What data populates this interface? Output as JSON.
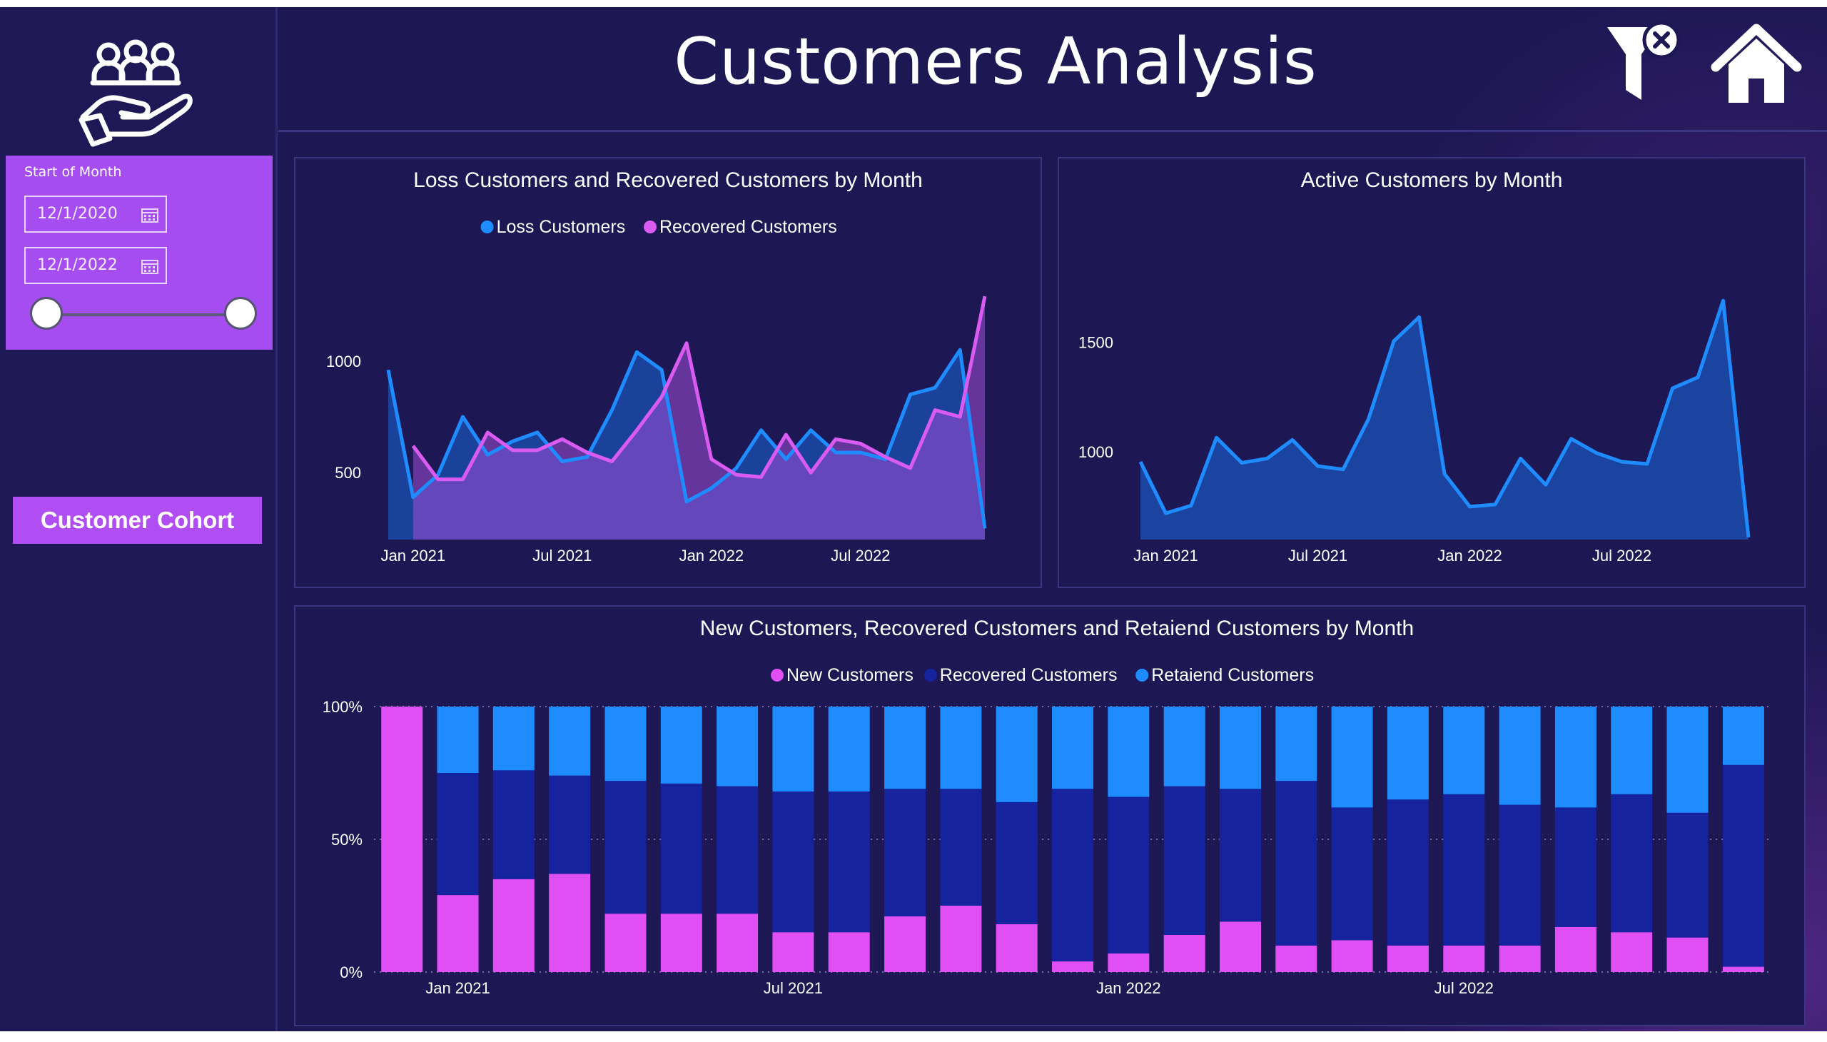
{
  "header": {
    "title": "Customers Analysis"
  },
  "sidebar": {
    "slicer": {
      "title": "Start of Month",
      "start_date": "12/1/2020",
      "end_date": "12/1/2022",
      "range": [
        0,
        1
      ]
    },
    "cohort_button_label": "Customer Cohort"
  },
  "colors": {
    "background": "#1d1754",
    "loss": "#1e8bff",
    "recovered_pink": "#d95bf2",
    "new_pink": "#df4ff4",
    "recovered_navy": "#15239e",
    "retained": "#1e8bff",
    "slicer": "#a64df2"
  },
  "chart_data": [
    {
      "type": "area",
      "title": "Loss Customers and Recovered Customers by Month",
      "x_ticks": [
        "Jan 2021",
        "Jul 2021",
        "Jan 2022",
        "Jul 2022"
      ],
      "x_tick_index": [
        1,
        7,
        13,
        19
      ],
      "y_ticks": [
        500,
        1000
      ],
      "ylim": [
        200,
        1300
      ],
      "legend": "top",
      "x": [
        "Dec 2020",
        "Jan 2021",
        "Feb 2021",
        "Mar 2021",
        "Apr 2021",
        "May 2021",
        "Jun 2021",
        "Jul 2021",
        "Aug 2021",
        "Sep 2021",
        "Oct 2021",
        "Nov 2021",
        "Dec 2021",
        "Jan 2022",
        "Feb 2022",
        "Mar 2022",
        "Apr 2022",
        "May 2022",
        "Jun 2022",
        "Jul 2022",
        "Aug 2022",
        "Sep 2022",
        "Oct 2022",
        "Nov 2022",
        "Dec 2022"
      ],
      "series": [
        {
          "name": "Loss Customers",
          "values": [
            960,
            390,
            490,
            750,
            580,
            640,
            680,
            550,
            570,
            780,
            1040,
            960,
            370,
            430,
            520,
            690,
            560,
            690,
            590,
            590,
            560,
            850,
            880,
            1050,
            250
          ]
        },
        {
          "name": "Recovered Customers",
          "values": [
            null,
            620,
            470,
            470,
            680,
            600,
            600,
            650,
            590,
            550,
            690,
            840,
            1080,
            560,
            490,
            480,
            670,
            500,
            650,
            630,
            570,
            520,
            780,
            750,
            1290
          ]
        }
      ]
    },
    {
      "type": "area",
      "title": "Active Customers by Month",
      "x_ticks": [
        "Jan 2021",
        "Jul 2021",
        "Jan 2022",
        "Jul 2022"
      ],
      "x_tick_index": [
        1,
        7,
        13,
        19
      ],
      "y_ticks": [
        1000,
        1500
      ],
      "ylim": [
        600,
        1720
      ],
      "x": [
        "Dec 2020",
        "Jan 2021",
        "Feb 2021",
        "Mar 2021",
        "Apr 2021",
        "May 2021",
        "Jun 2021",
        "Jul 2021",
        "Aug 2021",
        "Sep 2021",
        "Oct 2021",
        "Nov 2021",
        "Dec 2021",
        "Jan 2022",
        "Feb 2022",
        "Mar 2022",
        "Apr 2022",
        "May 2022",
        "Jun 2022",
        "Jul 2022",
        "Aug 2022",
        "Sep 2022",
        "Oct 2022",
        "Nov 2022",
        "Dec 2022"
      ],
      "series": [
        {
          "name": "Active Customers",
          "values": [
            955,
            720,
            755,
            1065,
            950,
            970,
            1055,
            935,
            920,
            1150,
            1505,
            1615,
            900,
            750,
            760,
            970,
            850,
            1060,
            995,
            955,
            945,
            1290,
            1340,
            1690,
            610
          ]
        }
      ]
    },
    {
      "type": "bar",
      "stacked": "percent",
      "title": "New Customers, Recovered Customers and Retaiend Customers by Month",
      "x_ticks": [
        "Jan 2021",
        "Jul 2021",
        "Jan 2022",
        "Jul 2022"
      ],
      "x_tick_index": [
        1,
        7,
        13,
        19
      ],
      "y_ticks": [
        "0%",
        "50%",
        "100%"
      ],
      "ylim": [
        0,
        100
      ],
      "legend": "top",
      "x": [
        "Dec 2020",
        "Jan 2021",
        "Feb 2021",
        "Mar 2021",
        "Apr 2021",
        "May 2021",
        "Jun 2021",
        "Jul 2021",
        "Aug 2021",
        "Sep 2021",
        "Oct 2021",
        "Nov 2021",
        "Dec 2021",
        "Jan 2022",
        "Feb 2022",
        "Mar 2022",
        "Apr 2022",
        "May 2022",
        "Jun 2022",
        "Jul 2022",
        "Aug 2022",
        "Sep 2022",
        "Oct 2022",
        "Nov 2022",
        "Dec 2022"
      ],
      "series": [
        {
          "name": "New Customers",
          "values": [
            100,
            29,
            35,
            37,
            22,
            22,
            22,
            15,
            15,
            21,
            25,
            18,
            4,
            7,
            14,
            19,
            10,
            12,
            10,
            10,
            10,
            17,
            15,
            13,
            2
          ]
        },
        {
          "name": "Recovered Customers",
          "values": [
            0,
            46,
            41,
            37,
            50,
            49,
            48,
            53,
            53,
            48,
            44,
            46,
            65,
            59,
            56,
            50,
            62,
            50,
            55,
            57,
            53,
            45,
            52,
            47,
            76
          ]
        },
        {
          "name": "Retaiend Customers",
          "values": [
            0,
            25,
            24,
            26,
            28,
            29,
            30,
            32,
            32,
            31,
            31,
            36,
            31,
            34,
            30,
            31,
            28,
            38,
            35,
            33,
            37,
            38,
            33,
            40,
            22
          ]
        }
      ]
    }
  ]
}
